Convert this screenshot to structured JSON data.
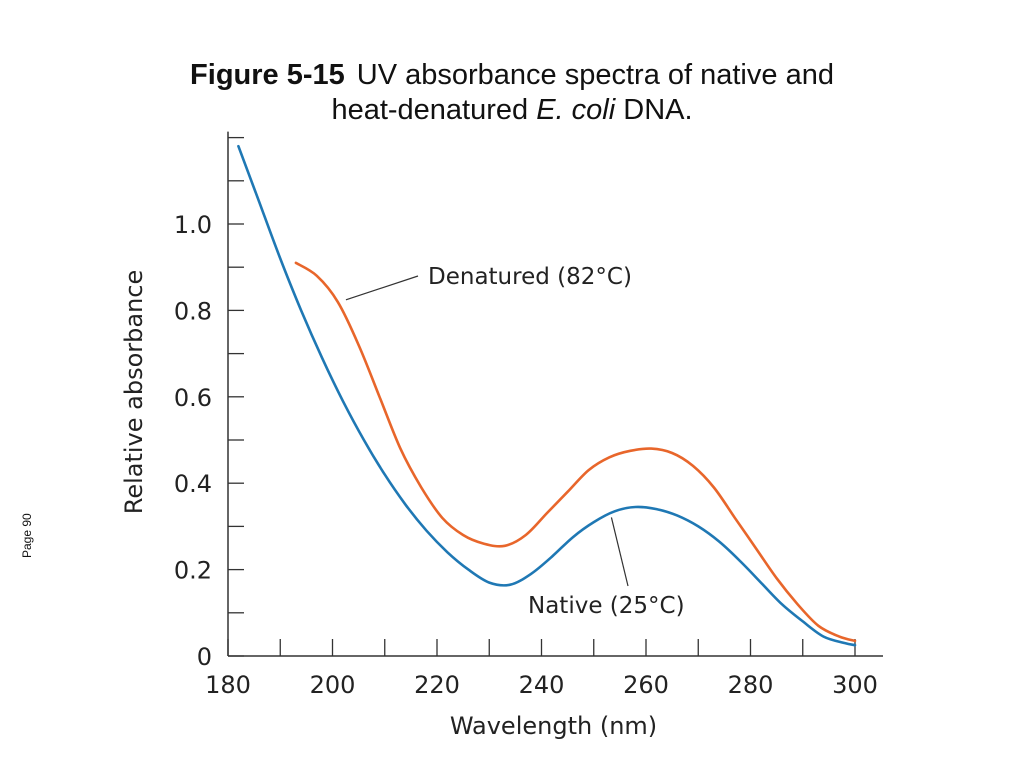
{
  "slide": {
    "figure_label": "Figure 5-15",
    "caption_line1": "UV absorbance spectra of native and",
    "caption_line2_pre": "heat-denatured ",
    "caption_line2_italic": "E. coli",
    "caption_line2_post": " DNA.",
    "page_label": "Page 90"
  },
  "chart_data": {
    "type": "line",
    "xlabel": "Wavelength (nm)",
    "ylabel": "Relative absorbance",
    "xlim": [
      180,
      300
    ],
    "ylim": [
      0,
      1.2
    ],
    "x_ticks": [
      180,
      200,
      220,
      240,
      260,
      280,
      300
    ],
    "y_ticks": [
      0,
      0.2,
      0.4,
      0.6,
      0.8,
      1.0
    ],
    "y_tick_labels": [
      "0",
      "0.2",
      "0.4",
      "0.6",
      "0.8",
      "1.0"
    ],
    "grid": false,
    "series": [
      {
        "name": "Denatured (82°C)",
        "color": "#e8662b",
        "x": [
          193,
          197,
          201,
          205,
          209,
          213,
          217,
          221,
          225,
          229,
          233,
          237,
          241,
          245,
          249,
          253,
          257,
          261,
          265,
          269,
          273,
          277,
          281,
          285,
          289,
          293,
          297,
          300
        ],
        "y": [
          0.91,
          0.88,
          0.82,
          0.72,
          0.6,
          0.48,
          0.39,
          0.32,
          0.28,
          0.26,
          0.255,
          0.28,
          0.33,
          0.38,
          0.43,
          0.46,
          0.475,
          0.48,
          0.47,
          0.44,
          0.39,
          0.32,
          0.25,
          0.18,
          0.12,
          0.07,
          0.045,
          0.035
        ]
      },
      {
        "name": "Native (25°C)",
        "color": "#1f78b4",
        "x": [
          182,
          186,
          190,
          194,
          198,
          202,
          206,
          210,
          214,
          218,
          222,
          226,
          230,
          234,
          238,
          242,
          246,
          250,
          254,
          258,
          262,
          266,
          270,
          274,
          278,
          282,
          286,
          290,
          294,
          298,
          300
        ],
        "y": [
          1.18,
          1.05,
          0.92,
          0.8,
          0.69,
          0.59,
          0.5,
          0.42,
          0.35,
          0.29,
          0.24,
          0.2,
          0.17,
          0.165,
          0.19,
          0.23,
          0.275,
          0.31,
          0.335,
          0.345,
          0.34,
          0.325,
          0.3,
          0.265,
          0.22,
          0.17,
          0.12,
          0.08,
          0.045,
          0.03,
          0.025
        ]
      }
    ],
    "annotations": [
      {
        "text": "Denatured (82°C)",
        "series": "Denatured (82°C)",
        "point_x": 202,
        "point_y": 0.82
      },
      {
        "text": "Native (25°C)",
        "series": "Native (25°C)",
        "point_x": 253,
        "point_y": 0.33
      }
    ]
  }
}
